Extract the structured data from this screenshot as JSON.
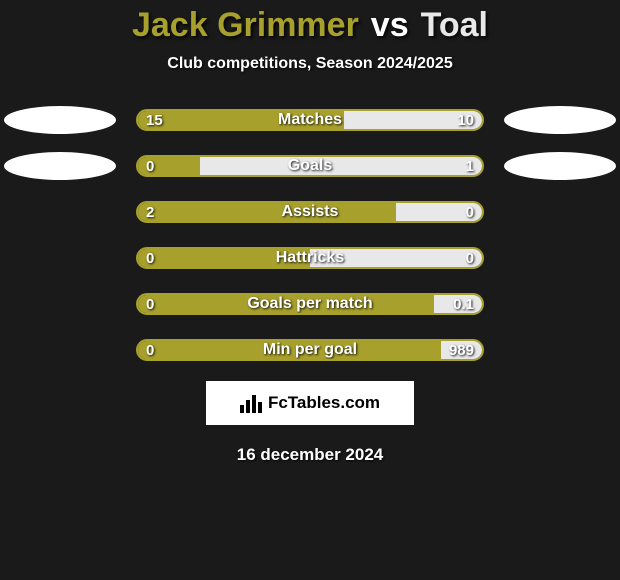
{
  "title": {
    "player1": "Jack Grimmer",
    "vs": "vs",
    "player2": "Toal",
    "player1_color": "#a7a02c",
    "player2_color": "#e8e8e8"
  },
  "subtitle": "Club competitions, Season 2024/2025",
  "colors": {
    "bg": "#1a1a1a",
    "p1": "#a7a02c",
    "p2": "#e8e8e8",
    "ellipse": "#ffffff"
  },
  "stats": [
    {
      "label": "Matches",
      "v1": "15",
      "v2": "10",
      "p1_pct": 60,
      "p2_pct": 40,
      "ellipse_left": true,
      "ellipse_right": true
    },
    {
      "label": "Goals",
      "v1": "0",
      "v2": "1",
      "p1_pct": 18,
      "p2_pct": 82,
      "ellipse_left": true,
      "ellipse_right": true
    },
    {
      "label": "Assists",
      "v1": "2",
      "v2": "0",
      "p1_pct": 75,
      "p2_pct": 25,
      "ellipse_left": false,
      "ellipse_right": false
    },
    {
      "label": "Hattricks",
      "v1": "0",
      "v2": "0",
      "p1_pct": 50,
      "p2_pct": 50,
      "ellipse_left": false,
      "ellipse_right": false
    },
    {
      "label": "Goals per match",
      "v1": "0",
      "v2": "0.1",
      "p1_pct": 86,
      "p2_pct": 14,
      "ellipse_left": false,
      "ellipse_right": false
    },
    {
      "label": "Min per goal",
      "v1": "0",
      "v2": "989",
      "p1_pct": 88,
      "p2_pct": 12,
      "ellipse_left": false,
      "ellipse_right": false
    }
  ],
  "logo_text": "FcTables.com",
  "date": "16 december 2024"
}
